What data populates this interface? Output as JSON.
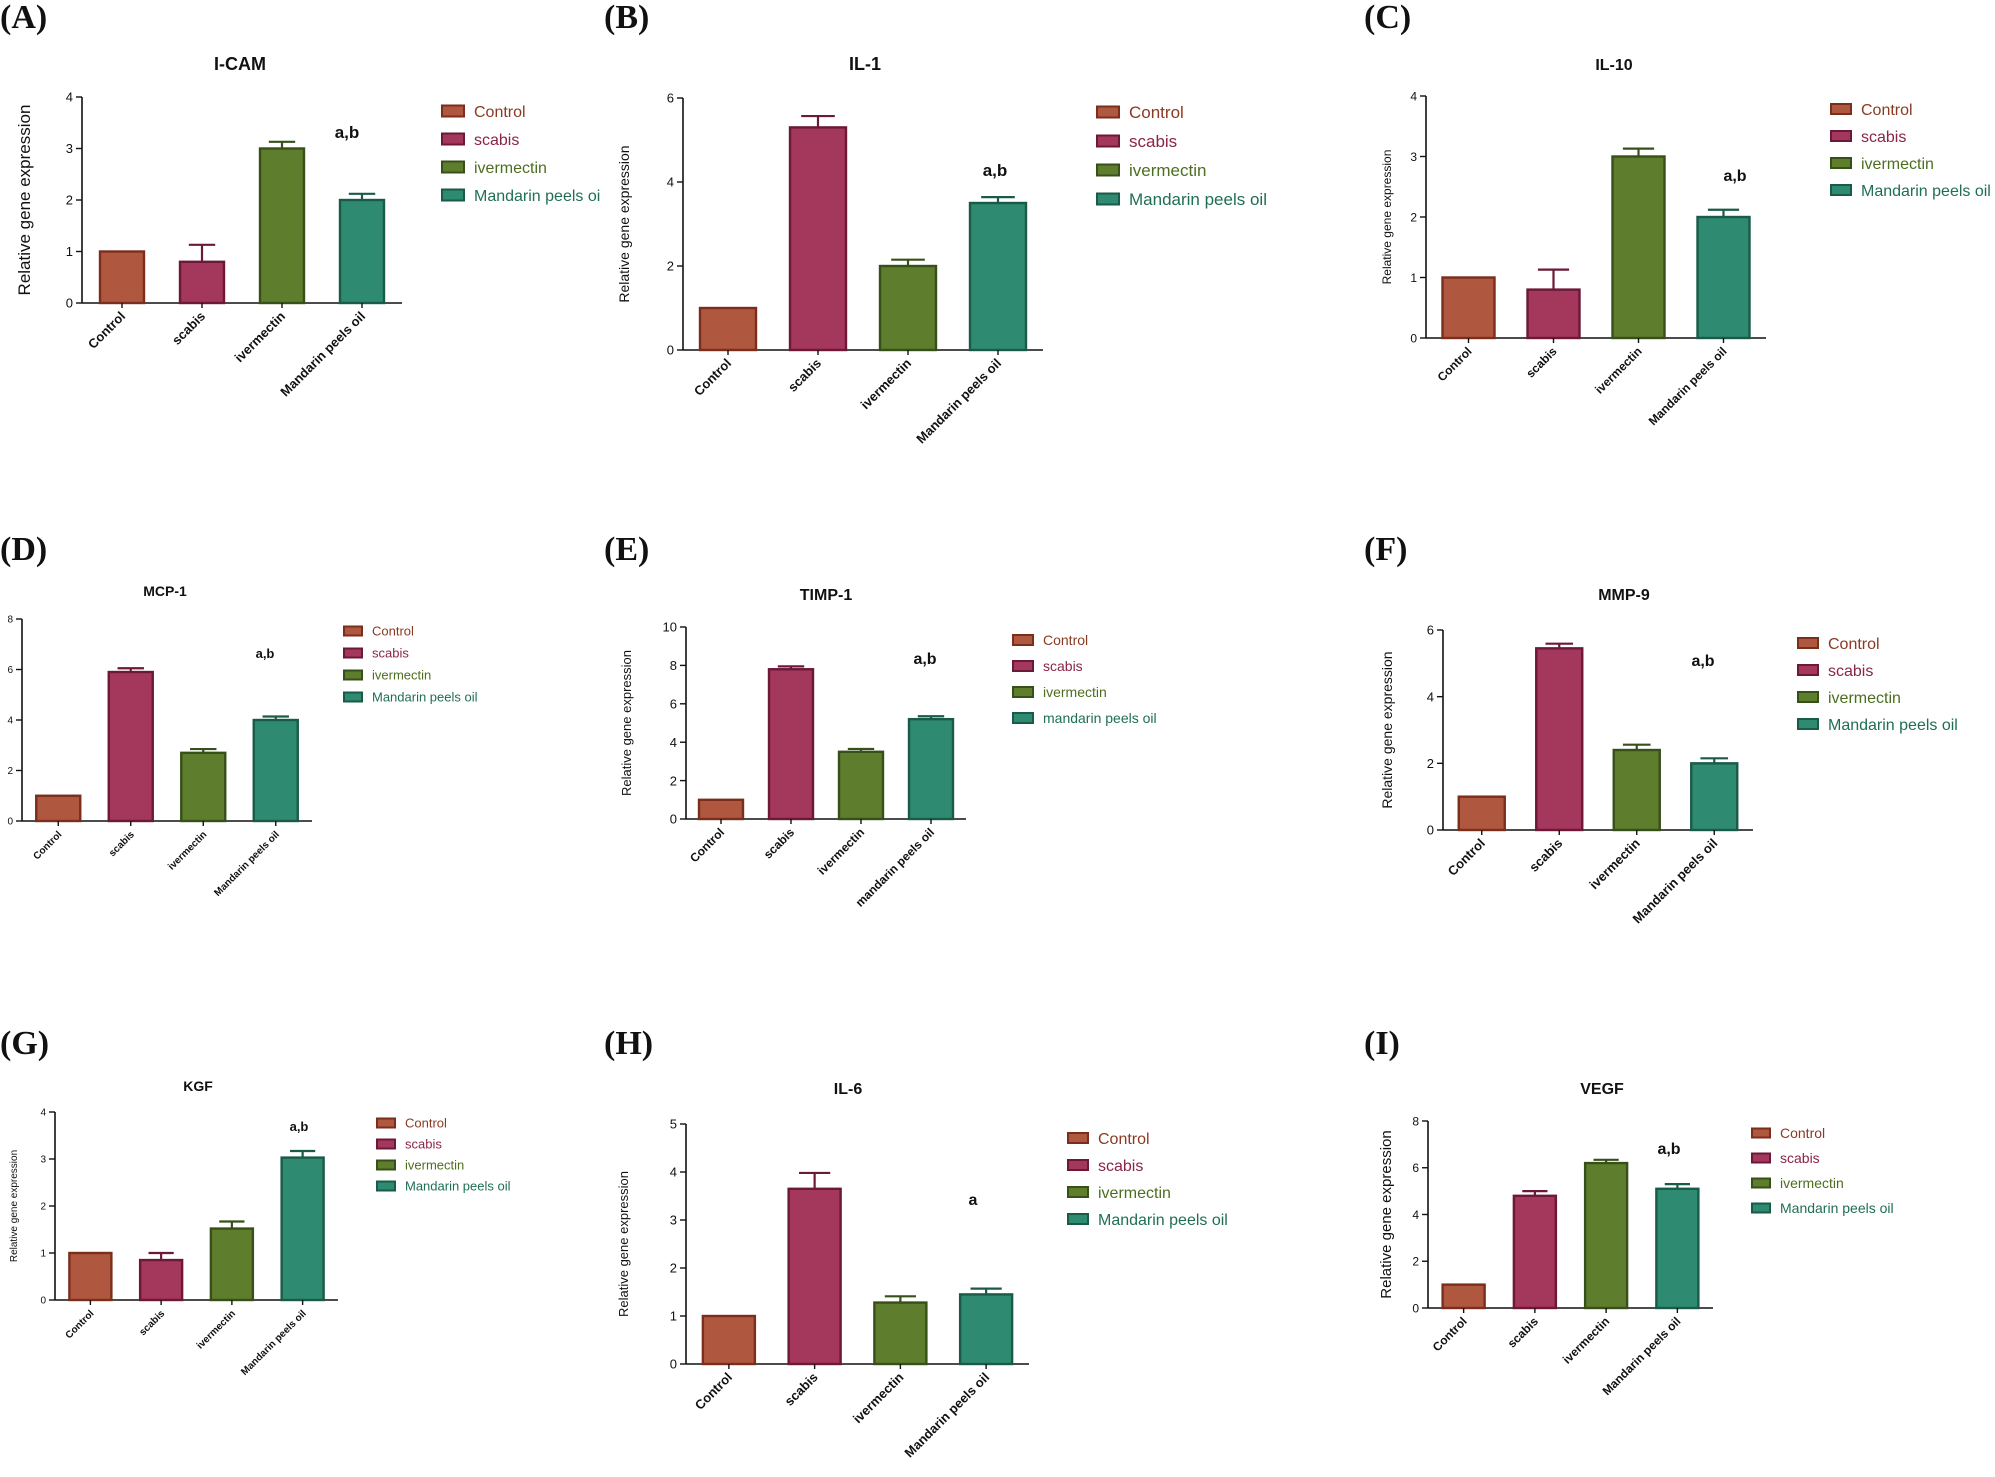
{
  "colors": {
    "Control": {
      "fill": "#b0573f",
      "stroke": "#7a2e1c",
      "text": "#8b3a22"
    },
    "scabis": {
      "fill": "#a3375c",
      "stroke": "#6c1838",
      "text": "#8a2448"
    },
    "ivermectin": {
      "fill": "#5e7e2d",
      "stroke": "#37501a",
      "text": "#4d6e1f"
    },
    "Mandarin": {
      "fill": "#2e8a70",
      "stroke": "#1a5a48",
      "text": "#1f6e56"
    },
    "axis": "#111111"
  },
  "chart_data": [
    {
      "panel": "(A)",
      "type": "bar",
      "title": "I-CAM",
      "ylabel": "Relative gene expression",
      "categories": [
        "Control",
        "scabis",
        "ivermectin",
        "Mandarin peels oil"
      ],
      "values": [
        1.0,
        0.8,
        3.0,
        2.0
      ],
      "errors": [
        0,
        0.33,
        0.13,
        0.12
      ],
      "ylim": [
        0,
        4
      ],
      "yticks": [
        "0",
        "1",
        "2",
        "3",
        "4"
      ],
      "legend": [
        "Control",
        "scabis",
        "ivermectin",
        "Mandarin peels oi"
      ],
      "annotation": "a,b"
    },
    {
      "panel": "(B)",
      "type": "bar",
      "title": "IL-1",
      "ylabel": "Relative gene expression",
      "categories": [
        "Control",
        "scabis",
        "ivermectin",
        "Mandarin peels oil"
      ],
      "values": [
        1.0,
        5.3,
        2.0,
        3.5
      ],
      "errors": [
        0,
        0.27,
        0.15,
        0.14
      ],
      "ylim": [
        0,
        6
      ],
      "yticks": [
        "0",
        "2",
        "4",
        "6"
      ],
      "legend": [
        "Control",
        "scabis",
        "ivermectin",
        "Mandarin peels oil"
      ],
      "annotation": "a,b"
    },
    {
      "panel": "(C)",
      "type": "bar",
      "title": "IL-10",
      "ylabel": "Relative gene expression",
      "categories": [
        "Control",
        "scabis",
        "ivermectin",
        "Mandarin peels oil"
      ],
      "values": [
        1.0,
        0.8,
        3.0,
        2.0
      ],
      "errors": [
        0,
        0.33,
        0.13,
        0.12
      ],
      "ylim": [
        0,
        4
      ],
      "yticks": [
        "0",
        "1",
        "2",
        "3",
        "4"
      ],
      "legend": [
        "Control",
        "scabis",
        "ivermectin",
        "Mandarin peels oil"
      ],
      "annotation": "a,b"
    },
    {
      "panel": "(D)",
      "type": "bar",
      "title": "MCP-1",
      "ylabel": "",
      "categories": [
        "Control",
        "scabis",
        "ivermectin",
        "Mandarin peels oil"
      ],
      "values": [
        1.0,
        5.9,
        2.7,
        4.0
      ],
      "errors": [
        0,
        0.15,
        0.15,
        0.14
      ],
      "ylim": [
        0,
        8
      ],
      "yticks": [
        "0",
        "2",
        "4",
        "6",
        "8"
      ],
      "legend": [
        "Control",
        "scabis",
        "ivermectin",
        "Mandarin peels oil"
      ],
      "annotation": "a,b"
    },
    {
      "panel": "(E)",
      "type": "bar",
      "title": "TIMP-1",
      "ylabel": "Relative gene expression",
      "categories": [
        "Control",
        "scabis",
        "ivermectin",
        "mandarin peels oil"
      ],
      "values": [
        1.0,
        7.8,
        3.5,
        5.2
      ],
      "errors": [
        0,
        0.15,
        0.15,
        0.15
      ],
      "ylim": [
        0,
        10
      ],
      "yticks": [
        "0",
        "2",
        "4",
        "6",
        "8",
        "10"
      ],
      "legend": [
        "Control",
        "scabis",
        "ivermectin",
        "mandarin peels oil"
      ],
      "annotation": "a,b"
    },
    {
      "panel": "(F)",
      "type": "bar",
      "title": "MMP-9",
      "ylabel": "Relative gene expression",
      "categories": [
        "Control",
        "scabis",
        "ivermectin",
        "Mandarin peels oil"
      ],
      "values": [
        1.0,
        5.45,
        2.4,
        2.0
      ],
      "errors": [
        0,
        0.14,
        0.16,
        0.15
      ],
      "ylim": [
        0,
        6
      ],
      "yticks": [
        "0",
        "2",
        "4",
        "6"
      ],
      "legend": [
        "Control",
        "scabis",
        "ivermectin",
        "Mandarin peels oil"
      ],
      "annotation": "a,b"
    },
    {
      "panel": "(G)",
      "type": "bar",
      "title": "KGF",
      "ylabel": "Relative gene expression",
      "categories": [
        "Control",
        "scabis",
        "ivermectin",
        "Mandarin peels oil"
      ],
      "values": [
        1.0,
        0.85,
        1.52,
        3.03
      ],
      "errors": [
        0,
        0.15,
        0.15,
        0.14
      ],
      "ylim": [
        0,
        4
      ],
      "yticks": [
        "0",
        "1",
        "2",
        "3",
        "4"
      ],
      "legend": [
        "Control",
        "scabis",
        "ivermectin",
        "Mandarin peels oil"
      ],
      "annotation": "a,b"
    },
    {
      "panel": "(H)",
      "type": "bar",
      "title": "IL-6",
      "ylabel": "Relative gene expression",
      "categories": [
        "Control",
        "scabis",
        "ivermectin",
        "Mandarin peels oil"
      ],
      "values": [
        1.0,
        3.65,
        1.28,
        1.45
      ],
      "errors": [
        0,
        0.33,
        0.13,
        0.12
      ],
      "ylim": [
        0,
        5
      ],
      "yticks": [
        "0",
        "1",
        "2",
        "3",
        "4",
        "5"
      ],
      "legend": [
        "Control",
        "scabis",
        "ivermectin",
        "Mandarin peels oil"
      ],
      "annotation": "a"
    },
    {
      "panel": "(I)",
      "type": "bar",
      "title": "VEGF",
      "ylabel": "Relative gene expression",
      "categories": [
        "Control",
        "scabis",
        "ivermectin",
        "Mandarin peels oil"
      ],
      "values": [
        1.0,
        4.8,
        6.2,
        5.1
      ],
      "errors": [
        0,
        0.2,
        0.14,
        0.2
      ],
      "ylim": [
        0,
        8
      ],
      "yticks": [
        "0",
        "2",
        "4",
        "6",
        "8"
      ],
      "legend": [
        "Control",
        "scabis",
        "ivermectin",
        "Mandarin peels oil"
      ],
      "annotation": "a,b"
    }
  ]
}
